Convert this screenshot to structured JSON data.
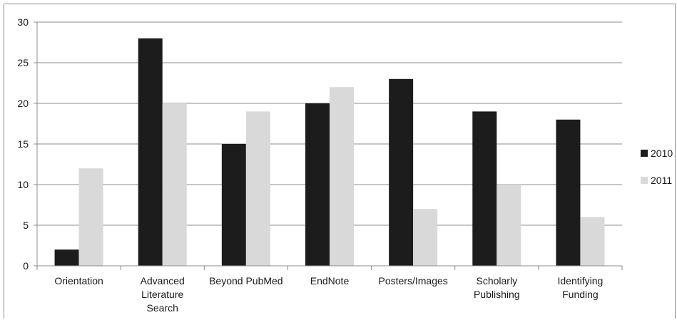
{
  "chart_data": {
    "type": "bar",
    "title": "",
    "xlabel": "",
    "ylabel": "",
    "ylim": [
      0,
      30
    ],
    "yticks": [
      0,
      5,
      10,
      15,
      20,
      25,
      30
    ],
    "grid": "horizontal",
    "legend_position": "right",
    "categories": [
      [
        "Orientation"
      ],
      [
        "Advanced",
        "Literature",
        "Search"
      ],
      [
        "Beyond PubMed"
      ],
      [
        "EndNote"
      ],
      [
        "Posters/Images"
      ],
      [
        "Scholarly",
        "Publishing"
      ],
      [
        "Identifying",
        "Funding"
      ]
    ],
    "series": [
      {
        "name": "2010",
        "color": "#1c1c1c",
        "values": [
          2,
          28,
          15,
          20,
          23,
          19,
          18
        ]
      },
      {
        "name": "2011",
        "color": "#d9d9d9",
        "values": [
          12,
          20,
          19,
          22,
          7,
          10,
          6
        ]
      }
    ]
  }
}
